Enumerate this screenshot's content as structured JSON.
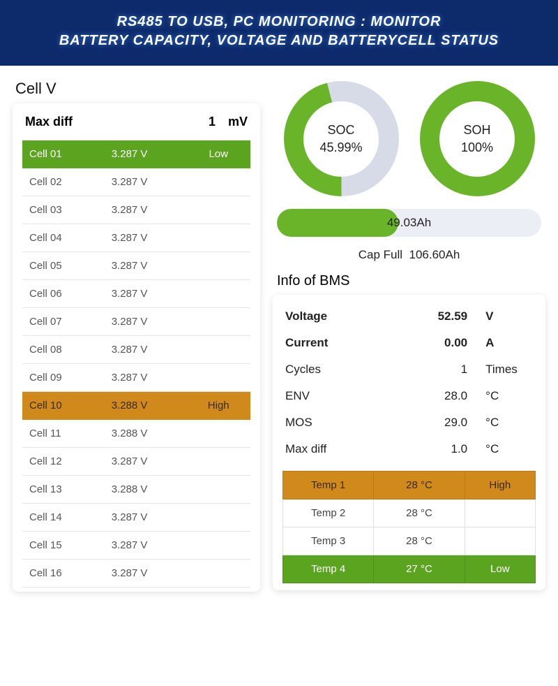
{
  "header": {
    "line1": "RS485 TO USB, PC MONITORING : MONITOR",
    "line2": "BATTERY CAPACITY, VOLTAGE AND BATTERYCELL STATUS"
  },
  "cellv": {
    "title": "Cell V",
    "maxdiff_label": "Max diff",
    "maxdiff_value": "1",
    "maxdiff_unit": "mV",
    "rows": [
      {
        "name": "Cell 01",
        "v": "3.287 V",
        "tag": "Low",
        "cls": "low"
      },
      {
        "name": "Cell 02",
        "v": "3.287 V",
        "tag": "",
        "cls": ""
      },
      {
        "name": "Cell 03",
        "v": "3.287 V",
        "tag": "",
        "cls": ""
      },
      {
        "name": "Cell 04",
        "v": "3.287 V",
        "tag": "",
        "cls": ""
      },
      {
        "name": "Cell 05",
        "v": "3.287 V",
        "tag": "",
        "cls": ""
      },
      {
        "name": "Cell 06",
        "v": "3.287 V",
        "tag": "",
        "cls": ""
      },
      {
        "name": "Cell 07",
        "v": "3.287 V",
        "tag": "",
        "cls": ""
      },
      {
        "name": "Cell 08",
        "v": "3.287 V",
        "tag": "",
        "cls": ""
      },
      {
        "name": "Cell 09",
        "v": "3.287 V",
        "tag": "",
        "cls": ""
      },
      {
        "name": "Cell 10",
        "v": "3.288 V",
        "tag": "High",
        "cls": "high"
      },
      {
        "name": "Cell 11",
        "v": "3.288 V",
        "tag": "",
        "cls": ""
      },
      {
        "name": "Cell 12",
        "v": "3.287 V",
        "tag": "",
        "cls": ""
      },
      {
        "name": "Cell 13",
        "v": "3.288 V",
        "tag": "",
        "cls": ""
      },
      {
        "name": "Cell 14",
        "v": "3.287 V",
        "tag": "",
        "cls": ""
      },
      {
        "name": "Cell 15",
        "v": "3.287 V",
        "tag": "",
        "cls": ""
      },
      {
        "name": "Cell 16",
        "v": "3.287 V",
        "tag": "",
        "cls": ""
      }
    ]
  },
  "gauges": {
    "soc": {
      "label": "SOC",
      "value": "45.99%",
      "pct": 45.99,
      "fg": "#6ab429",
      "bg": "#d7dbe8"
    },
    "soh": {
      "label": "SOH",
      "value": "100%",
      "pct": 100,
      "fg": "#6ab429",
      "bg": "#d7dbe8"
    }
  },
  "capacity": {
    "current": "49.03Ah",
    "pct": 46,
    "full_label": "Cap Full",
    "full_value": "106.60Ah",
    "bar_fg": "#6ab429",
    "bar_bg": "#eceef5"
  },
  "bms": {
    "title": "Info of BMS",
    "rows": [
      {
        "label": "Voltage",
        "value": "52.59",
        "unit": "V",
        "bold": true
      },
      {
        "label": "Current",
        "value": "0.00",
        "unit": "A",
        "bold": true
      },
      {
        "label": "Cycles",
        "value": "1",
        "unit": "Times",
        "bold": false
      },
      {
        "label": "ENV",
        "value": "28.0",
        "unit": "°C",
        "bold": false
      },
      {
        "label": "MOS",
        "value": "29.0",
        "unit": "°C",
        "bold": false
      },
      {
        "label": "Max diff",
        "value": "1.0",
        "unit": "°C",
        "bold": false
      }
    ],
    "temps": [
      {
        "name": "Temp 1",
        "v": "28 °C",
        "tag": "High",
        "cls": "high"
      },
      {
        "name": "Temp 2",
        "v": "28 °C",
        "tag": "",
        "cls": ""
      },
      {
        "name": "Temp 3",
        "v": "28 °C",
        "tag": "",
        "cls": ""
      },
      {
        "name": "Temp 4",
        "v": "27 °C",
        "tag": "Low",
        "cls": "low"
      }
    ]
  },
  "colors": {
    "header_bg": "#0d2a6b",
    "low": "#5aa41f",
    "high": "#d08a1b",
    "gauge_fg": "#6ab429",
    "gauge_bg": "#d7dbe8"
  }
}
